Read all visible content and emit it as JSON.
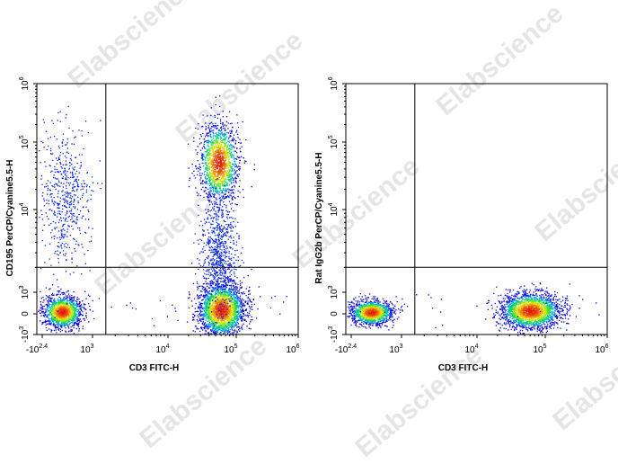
{
  "watermark": "Elabscience",
  "chart_data": [
    {
      "type": "scatter",
      "title": "",
      "xlabel": "CD3 FITC-H",
      "ylabel": "CD195 PerCP/Cyanine5.5-H",
      "xscale": "biexponential",
      "yscale": "biexponential",
      "xticks": [
        "-10^2.4",
        "10^3",
        "10^4",
        "10^5",
        "10^6"
      ],
      "yticks": [
        "-10^3",
        "0",
        "10^3",
        "10^4",
        "10^5",
        "10^6"
      ],
      "gate": {
        "x": 1500,
        "y": 2000
      },
      "grid": false,
      "series": [
        {
          "values_desc": "CD3- CD195-",
          "center": {
            "x": 250,
            "y": 100
          },
          "density": "high"
        },
        {
          "values_desc": "CD3- CD195+ scatter",
          "center": {
            "x": 300,
            "y": 15000
          },
          "density": "low"
        },
        {
          "values_desc": "CD3+ CD195-",
          "center": {
            "x": 60000,
            "y": 200
          },
          "density": "very high"
        },
        {
          "values_desc": "CD3+ CD195+",
          "center": {
            "x": 55000,
            "y": 50000
          },
          "density": "high"
        }
      ]
    },
    {
      "type": "scatter",
      "title": "",
      "xlabel": "CD3 FITC-H",
      "ylabel": "Rat IgG2b PerCP/Cyanine5.5-H",
      "xscale": "biexponential",
      "yscale": "biexponential",
      "xticks": [
        "-10^2.4",
        "10^3",
        "10^4",
        "10^5",
        "10^6"
      ],
      "yticks": [
        "-10^3",
        "0",
        "10^3",
        "10^4",
        "10^5",
        "10^6"
      ],
      "gate": {
        "x": 1500,
        "y": 2000
      },
      "grid": false,
      "series": [
        {
          "values_desc": "CD3- isotype",
          "center": {
            "x": 250,
            "y": 80
          },
          "density": "high"
        },
        {
          "values_desc": "CD3+ isotype",
          "center": {
            "x": 60000,
            "y": 150
          },
          "density": "very high"
        }
      ]
    }
  ]
}
